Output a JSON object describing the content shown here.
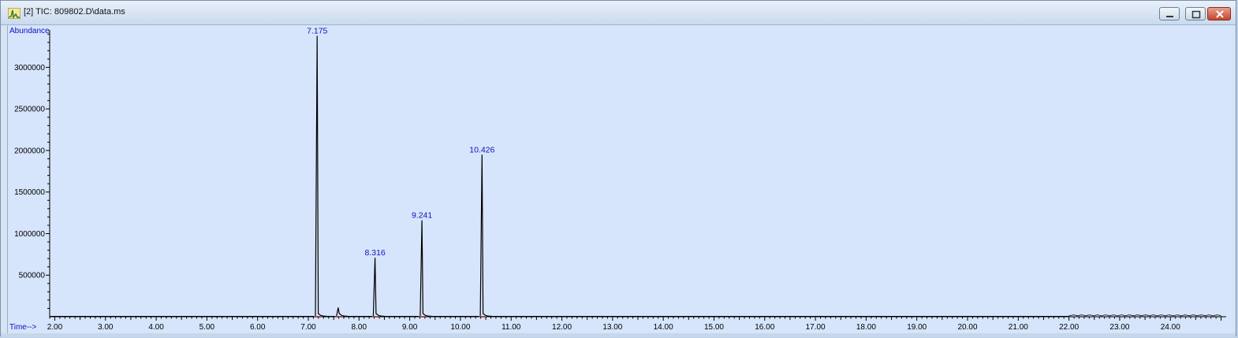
{
  "window": {
    "title": "[2] TIC: 809802.D\\data.ms"
  },
  "icons": {
    "app": "chromatogram-app-icon",
    "minimize": "minimize-icon",
    "restore": "restore-icon",
    "close": "close-icon"
  },
  "colors": {
    "background": "#d6e5fb",
    "trace": "#000000",
    "axis_label": "#1010c0",
    "baseline_marker": "#d04040"
  },
  "chart_data": {
    "type": "line",
    "ylabel": "Abundance",
    "xlabel": "Time-->",
    "xlim": [
      1.9,
      25.1
    ],
    "ylim": [
      0,
      3450000
    ],
    "x_ticks": [
      "2.00",
      "3.00",
      "4.00",
      "5.00",
      "6.00",
      "7.00",
      "8.00",
      "9.00",
      "10.00",
      "11.00",
      "12.00",
      "13.00",
      "14.00",
      "15.00",
      "16.00",
      "17.00",
      "18.00",
      "19.00",
      "20.00",
      "21.00",
      "22.00",
      "23.00",
      "24.00"
    ],
    "y_ticks": [
      "500000",
      "1000000",
      "1500000",
      "2000000",
      "2500000",
      "3000000"
    ],
    "grid": false,
    "peaks": [
      {
        "rt": 7.175,
        "label": "7.175",
        "height": 3380000
      },
      {
        "rt": 7.59,
        "label": "",
        "height": 110000
      },
      {
        "rt": 8.316,
        "label": "8.316",
        "height": 710000
      },
      {
        "rt": 9.241,
        "label": "9.241",
        "height": 1160000
      },
      {
        "rt": 10.426,
        "label": "10.426",
        "height": 1950000
      }
    ]
  }
}
